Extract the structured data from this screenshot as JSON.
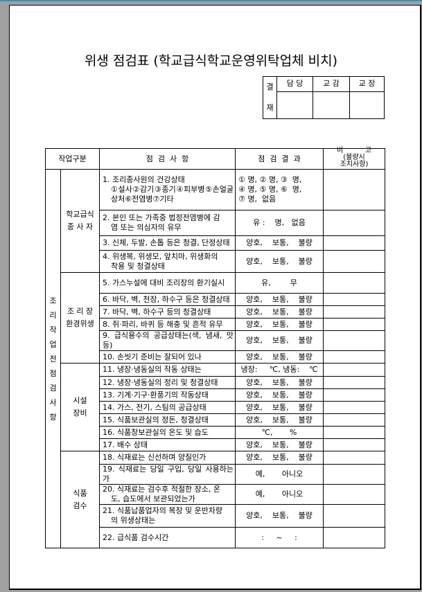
{
  "title": "위생 점검표 (학교급식학교운영위탁업체 비치)",
  "approval": {
    "label_top": "결",
    "label_bottom": "재",
    "columns": [
      "담 당",
      "교 감",
      "교 장"
    ]
  },
  "table": {
    "headers": {
      "category": "작업구분",
      "items": "점  검  사  항",
      "result": "점  검  결  과",
      "remarks_title": "비          고",
      "remarks_sub": "(불량시\n조치사항)"
    },
    "section": "조리작업전점검사항",
    "groups": [
      {
        "label": "학교급식\n종 사 자",
        "rows": [
          {
            "item": "1. 조리종사원의 건강상태",
            "item2": "①설사②감기③종기④피부병⑤손얼굴 상처⑥전염병⑦기타",
            "result": "① 명, ② 명, ③  명,\n④ 명, ⑤ 명, ⑥  명,\n⑦ 명,  없음"
          },
          {
            "item": "2. 본인 또는 가족중 법정전염병에 감",
            "item2": "염 또는 의심자의 유무",
            "result": "유 :    명,   없음"
          },
          {
            "item": "3. 신체, 두발, 손톱 등은 청결, 단정상태",
            "result": "양호,    보통,    불량"
          },
          {
            "item": "4. 위생복, 위생모, 앞치마, 위생화의",
            "item2": "착용 및 청결상태",
            "result": "양호,    보통,    불량"
          }
        ]
      },
      {
        "label": "조 리 장\n환경위생",
        "rows": [
          {
            "item": "5. 가스누설에 대비 조리장의 환기실시",
            "result": "유,        무"
          },
          {
            "item": "6. 바닥, 벽, 천장, 하수구 등은 청결상태",
            "result": "양호,    보통,    불량"
          },
          {
            "item": "7. 바닥, 벽, 하수구 등의 청결상태",
            "result": "양호,    보통,    불량"
          },
          {
            "item": "8. 쥐·파리, 바퀴 등 해충 및 흔적 유무",
            "result": "양호,    보통,    불량"
          },
          {
            "item": "9. 급식용수의 공급상태는(색, 냄새, 맛 등)",
            "result": "양호,    보통,    불량"
          },
          {
            "item": "10. 손씻기 준비는 잘되어 있나",
            "result": "양호,    보통,    불량"
          }
        ]
      },
      {
        "label": "시설\n장비",
        "rows": [
          {
            "item": "11. 냉장·냉동실의 작동 상태는",
            "result": "냉장:     ℃, 냉동:    ℃"
          },
          {
            "item": "12. 냉장·냉동실의 정리 및 청결상태",
            "result": "양호,    보통,    불량"
          },
          {
            "item": "13. 기계·기구·환풍기의 작동상태",
            "result": "양호,    보통,    불량"
          },
          {
            "item": "14. 가스, 전기, 스팀의 공급상태",
            "result": "양호,    보통,    불량"
          },
          {
            "item": "15. 식품보관실의 정돈, 청결상태",
            "result": "양호,    보통,    불량"
          },
          {
            "item": "16. 식품창보관실의 온도 및 습도",
            "result": "℃,       %"
          },
          {
            "item": "17. 배수 상태",
            "result": "양호,    보통,    불량"
          }
        ]
      },
      {
        "label": "식품\n검수",
        "rows": [
          {
            "item": "18. 식재료는 신선하며 양질인가",
            "result": "양호,    보통,    불량"
          },
          {
            "item": "19. 식재료는 당일 구입, 당일 사용하는가",
            "result": "예,       아니오"
          },
          {
            "item": "20. 식재료는 검수후 적절한 장소, 온",
            "item2": "도, 습도에서 보관되었는가",
            "result": "예,       아니오"
          },
          {
            "item": "21. 식품납품업자의 복장 및 운반차량",
            "item2": "의 위생상태는",
            "result": "양호,    보통,    불량"
          },
          {
            "item": "22. 급식품 검수시간",
            "result": ":     ~     :"
          }
        ]
      }
    ]
  }
}
